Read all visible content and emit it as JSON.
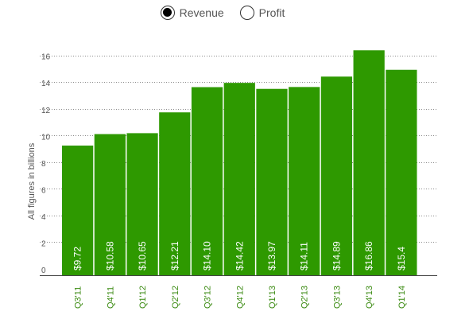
{
  "legend": {
    "items": [
      {
        "label": "Revenue",
        "selected": true
      },
      {
        "label": "Profit",
        "selected": false
      }
    ]
  },
  "chart_data": {
    "type": "bar",
    "ylabel": "All figures in billions",
    "xlabel": "",
    "categories": [
      "Q3'11",
      "Q4'11",
      "Q1'12",
      "Q2'12",
      "Q3'12",
      "Q4'12",
      "Q1'13",
      "Q2'13",
      "Q3'13",
      "Q4'13",
      "Q1'14"
    ],
    "values": [
      9.72,
      10.58,
      10.65,
      12.21,
      14.1,
      14.42,
      13.97,
      14.11,
      14.89,
      16.86,
      15.4
    ],
    "value_labels": [
      "$9.72",
      "$10.58",
      "$10.65",
      "$12.21",
      "$14.10",
      "$14.42",
      "$13.97",
      "$14.11",
      "$14.89",
      "$16.86",
      "$15.4"
    ],
    "ylim": [
      0,
      16
    ],
    "yticks": [
      0,
      2,
      4,
      6,
      8,
      10,
      12,
      14,
      16
    ],
    "grid": "dotted horizontal",
    "colors": {
      "bar": "#2e9900",
      "xtick": "#3a8a10",
      "axis_text": "#555555",
      "grid": "#666666"
    }
  }
}
